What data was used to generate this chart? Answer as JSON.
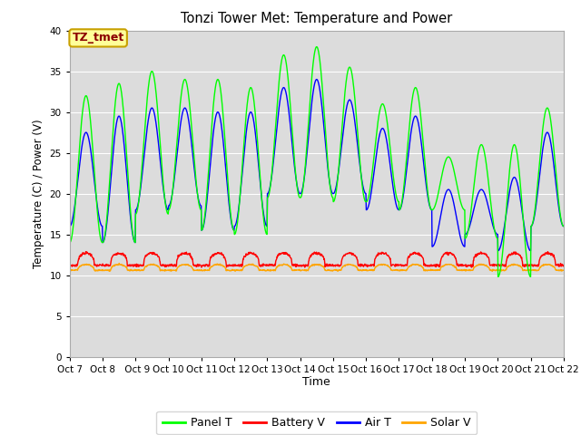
{
  "title": "Tonzi Tower Met: Temperature and Power",
  "xlabel": "Time",
  "ylabel": "Temperature (C) / Power (V)",
  "ylim": [
    0,
    40
  ],
  "yticks": [
    0,
    5,
    10,
    15,
    20,
    25,
    30,
    35,
    40
  ],
  "xtick_labels": [
    "Oct 7",
    "Oct 8",
    " Oct 9",
    "Oct 10",
    "Oct 11",
    "Oct 12",
    "Oct 13",
    "Oct 14",
    "Oct 15",
    "Oct 16",
    "Oct 17",
    "Oct 18",
    "Oct 19",
    "Oct 20",
    "Oct 21",
    "Oct 22"
  ],
  "n_days": 15,
  "panel_color": "#00FF00",
  "battery_color": "#FF0000",
  "air_color": "#0000FF",
  "solar_color": "#FFA500",
  "bg_color": "#DCDCDC",
  "fig_bg": "#FFFFFF",
  "annotation_text": "TZ_tmet",
  "annotation_bg": "#FFFF99",
  "annotation_border": "#C8A000",
  "annotation_text_color": "#8B0000",
  "legend_labels": [
    "Panel T",
    "Battery V",
    "Air T",
    "Solar V"
  ],
  "line_width": 1.0,
  "panel_peaks": [
    32,
    33.5,
    35,
    34,
    34,
    33,
    37,
    38,
    35.5,
    31,
    33,
    24.5,
    26,
    26,
    30.5
  ],
  "panel_mins": [
    14,
    14,
    17.5,
    18,
    15.5,
    15,
    19.5,
    19.5,
    19,
    19,
    18,
    18,
    14.5,
    9.8,
    16
  ],
  "air_peaks": [
    27.5,
    29.5,
    30.5,
    30.5,
    30,
    30,
    33,
    34,
    31.5,
    28,
    29.5,
    20.5,
    20.5,
    22,
    27.5
  ],
  "air_mins": [
    16,
    14,
    18,
    18.5,
    15.5,
    16,
    20,
    20,
    20,
    18,
    18,
    13.5,
    15,
    13,
    16
  ],
  "batt_base": 11.2,
  "batt_spike": 1.5,
  "solar_base": 10.6,
  "solar_bump": 0.7
}
